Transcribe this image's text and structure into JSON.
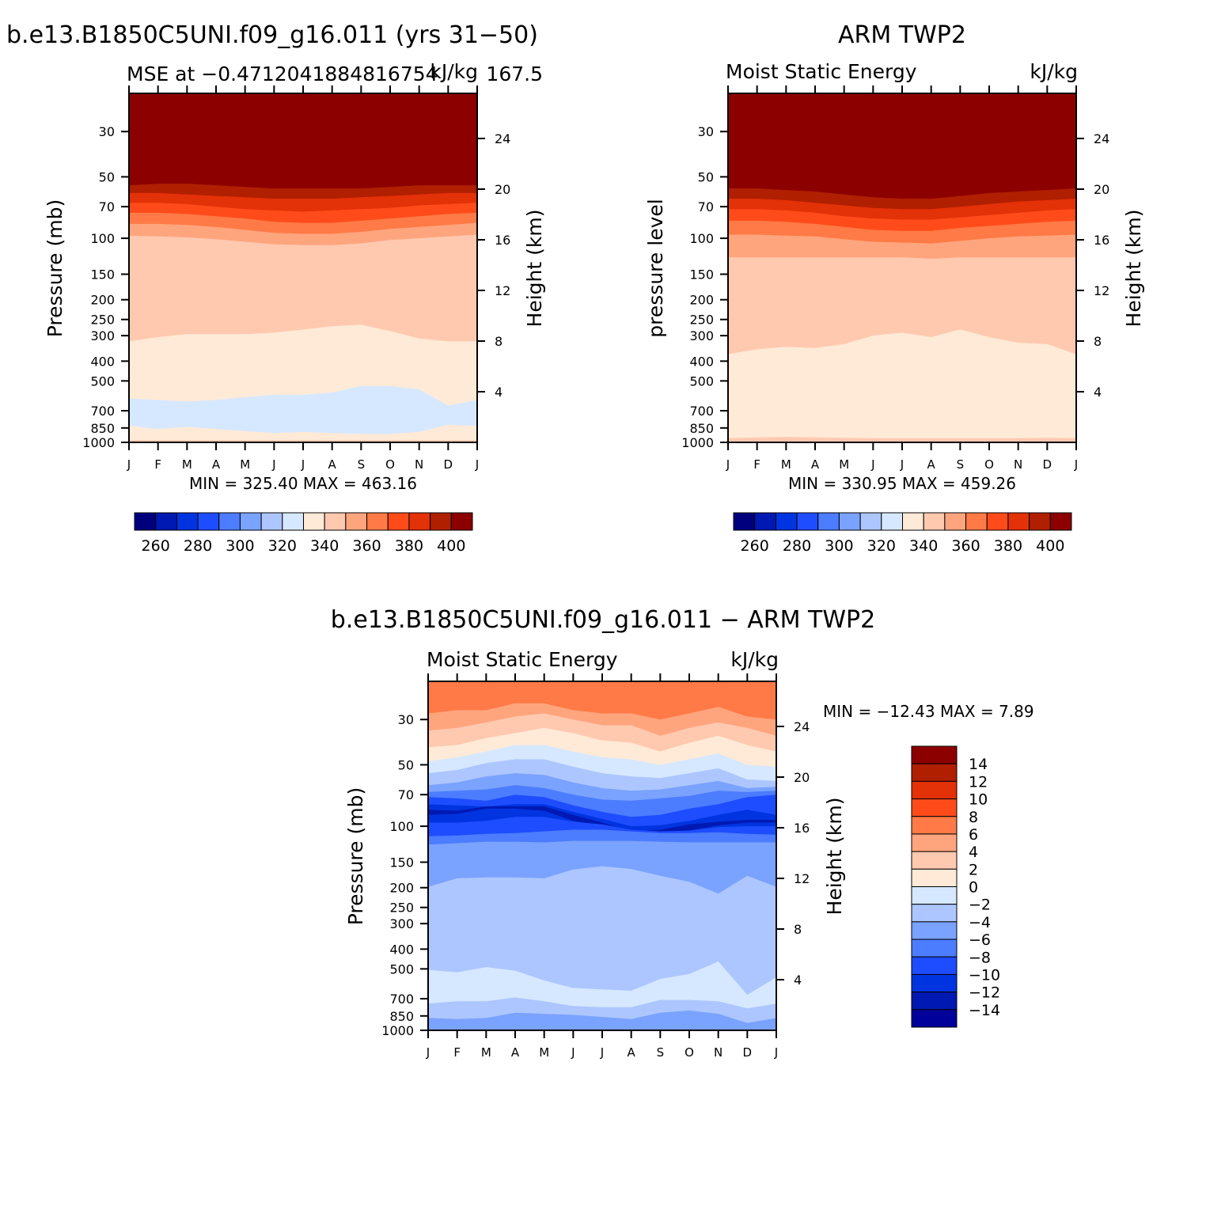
{
  "colors": {
    "abs_palette": [
      "#00007f",
      "#0019b3",
      "#0034e0",
      "#1e4dff",
      "#4c7cff",
      "#7aa2ff",
      "#adc6ff",
      "#d6e8ff",
      "#ffead7",
      "#ffc9b0",
      "#ffa57e",
      "#ff7a46",
      "#ff4b1a",
      "#e33108",
      "#b01f00",
      "#8c0000"
    ],
    "diff_palette": [
      "#00009a",
      "#0019b3",
      "#0034e0",
      "#1e4dff",
      "#4c7cff",
      "#7aa2ff",
      "#adc6ff",
      "#d6e8ff",
      "#ffead7",
      "#ffc9b0",
      "#ffa57e",
      "#ff7a46",
      "#ff4b1a",
      "#e33108",
      "#b01f00",
      "#8c0000"
    ]
  },
  "chart_data": [
    {
      "id": "model",
      "type": "heatmap",
      "title": "b.e13.B1850C5UNI.f09_g16.011 (yrs 31-50)",
      "left_label": "MSE at -0.4712041884816754",
      "center_label": "167.5",
      "right_label": "kJ/kg",
      "ylabel": "Pressure (mb)",
      "y2label": "Height (km)",
      "months": [
        "J",
        "F",
        "M",
        "A",
        "M",
        "J",
        "J",
        "A",
        "S",
        "O",
        "N",
        "D",
        "J"
      ],
      "pressure_ticks": [
        "30",
        "50",
        "70",
        "100",
        "150",
        "200",
        "250",
        "300",
        "400",
        "500",
        "700",
        "850",
        "1000"
      ],
      "height_ticks": [
        "24",
        "20",
        "16",
        "12",
        "8",
        "4"
      ],
      "minmax": "MIN = 325.40 MAX = 463.16",
      "colorbar_labels": [
        "260",
        "280",
        "300",
        "320",
        "340",
        "360",
        "380",
        "400"
      ],
      "levels": [
        250,
        260,
        270,
        280,
        290,
        300,
        310,
        320,
        330,
        340,
        350,
        360,
        370,
        380,
        390,
        400
      ],
      "bands": [
        {
          "level": 390,
          "boundary_mb": [
            55,
            54,
            54,
            55,
            56,
            57,
            57,
            57,
            57,
            56,
            55,
            55,
            55
          ]
        },
        {
          "level": 380,
          "boundary_mb": [
            60,
            60,
            61,
            62,
            63,
            64,
            64,
            64,
            63,
            62,
            61,
            60,
            60
          ]
        },
        {
          "level": 370,
          "boundary_mb": [
            67,
            67,
            68,
            70,
            72,
            73,
            74,
            73,
            72,
            71,
            69,
            68,
            67
          ]
        },
        {
          "level": 360,
          "boundary_mb": [
            75,
            75,
            76,
            78,
            80,
            83,
            84,
            84,
            82,
            80,
            78,
            76,
            75
          ]
        },
        {
          "level": 350,
          "boundary_mb": [
            85,
            85,
            86,
            88,
            91,
            94,
            95,
            95,
            93,
            90,
            88,
            86,
            84
          ]
        },
        {
          "level": 340,
          "boundary_mb": [
            97,
            98,
            99,
            101,
            104,
            107,
            108,
            108,
            106,
            102,
            100,
            98,
            96
          ]
        },
        {
          "level": 330,
          "boundary_mb": [
            320,
            305,
            295,
            295,
            295,
            290,
            280,
            270,
            265,
            285,
            310,
            320,
            320
          ]
        },
        {
          "level": 320,
          "boundary_mb": [
            610,
            620,
            630,
            620,
            600,
            585,
            585,
            570,
            530,
            530,
            550,
            660,
            620
          ]
        },
        {
          "level": 330,
          "boundary_mb": [
            830,
            860,
            840,
            860,
            880,
            900,
            890,
            900,
            910,
            910,
            890,
            820,
            830
          ]
        },
        {
          "level": 340,
          "boundary_mb": [
            975,
            975,
            975,
            975,
            975,
            975,
            975,
            975,
            975,
            975,
            975,
            975,
            975
          ]
        }
      ]
    },
    {
      "id": "obs",
      "type": "heatmap",
      "title": "ARM TWP2",
      "left_label": "Moist Static Energy",
      "right_label": "kJ/kg",
      "ylabel": "pressure level",
      "y2label": "Height (km)",
      "months": [
        "J",
        "F",
        "M",
        "A",
        "M",
        "J",
        "J",
        "A",
        "S",
        "O",
        "N",
        "D",
        "J"
      ],
      "pressure_ticks": [
        "30",
        "50",
        "70",
        "100",
        "150",
        "200",
        "250",
        "300",
        "400",
        "500",
        "700",
        "850",
        "1000"
      ],
      "height_ticks": [
        "24",
        "20",
        "16",
        "12",
        "8",
        "4"
      ],
      "minmax": "MIN = 330.95 MAX = 459.26",
      "colorbar_labels": [
        "260",
        "280",
        "300",
        "320",
        "340",
        "360",
        "380",
        "400"
      ],
      "levels": [
        250,
        260,
        270,
        280,
        290,
        300,
        310,
        320,
        330,
        340,
        350,
        360,
        370,
        380,
        390,
        400
      ],
      "bands": [
        {
          "level": 390,
          "boundary_mb": [
            57,
            57,
            58,
            59,
            61,
            63,
            64,
            64,
            62,
            60,
            59,
            58,
            57
          ]
        },
        {
          "level": 380,
          "boundary_mb": [
            64,
            64,
            65,
            67,
            69,
            71,
            72,
            72,
            70,
            68,
            66,
            65,
            64
          ]
        },
        {
          "level": 370,
          "boundary_mb": [
            72,
            72,
            73,
            75,
            78,
            80,
            81,
            81,
            79,
            77,
            75,
            73,
            72
          ]
        },
        {
          "level": 360,
          "boundary_mb": [
            82,
            82,
            83,
            85,
            88,
            91,
            92,
            92,
            89,
            87,
            85,
            83,
            82
          ]
        },
        {
          "level": 350,
          "boundary_mb": [
            96,
            96,
            97,
            98,
            101,
            104,
            105,
            106,
            103,
            100,
            98,
            97,
            96
          ]
        },
        {
          "level": 340,
          "boundary_mb": [
            124,
            124,
            124,
            124,
            124,
            124,
            124,
            126,
            124,
            124,
            124,
            124,
            124
          ]
        },
        {
          "level": 330,
          "boundary_mb": [
            370,
            350,
            340,
            345,
            330,
            300,
            290,
            305,
            280,
            305,
            325,
            330,
            370
          ]
        },
        {
          "level": 340,
          "boundary_mb": [
            955,
            945,
            940,
            945,
            950,
            955,
            955,
            955,
            955,
            955,
            955,
            950,
            955
          ]
        }
      ]
    },
    {
      "id": "diff",
      "type": "heatmap",
      "title": "b.e13.B1850C5UNI.f09_g16.011 - ARM TWP2",
      "left_label": "Moist Static Energy",
      "right_label": "kJ/kg",
      "ylabel": "Pressure (mb)",
      "y2label": "Height (km)",
      "months": [
        "J",
        "F",
        "M",
        "A",
        "M",
        "J",
        "J",
        "A",
        "S",
        "O",
        "N",
        "D",
        "J"
      ],
      "pressure_ticks": [
        "30",
        "50",
        "70",
        "100",
        "150",
        "200",
        "250",
        "300",
        "400",
        "500",
        "700",
        "850",
        "1000"
      ],
      "height_ticks": [
        "24",
        "20",
        "16",
        "12",
        "8",
        "4"
      ],
      "minmax": "MIN = -12.43 MAX =    7.89",
      "colorbar_labels": [
        "14",
        "12",
        "10",
        "8",
        "6",
        "4",
        "2",
        "0",
        "-2",
        "-4",
        "-6",
        "-8",
        "-10",
        "-12",
        "-14"
      ],
      "levels": [
        -16,
        -14,
        -12,
        -10,
        -8,
        -6,
        -4,
        -2,
        0,
        2,
        4,
        6,
        8,
        10,
        12,
        14
      ],
      "bands": [
        {
          "level": 4,
          "boundary_mb": [
            28,
            27,
            27,
            25,
            25,
            27,
            28,
            28,
            30,
            28,
            26,
            29,
            30
          ]
        },
        {
          "level": 2,
          "boundary_mb": [
            34,
            33,
            31,
            29,
            28,
            30,
            32,
            32,
            36,
            33,
            31,
            33,
            36
          ]
        },
        {
          "level": 0,
          "boundary_mb": [
            41,
            40,
            37,
            35,
            33,
            35,
            38,
            39,
            43,
            39,
            36,
            40,
            43
          ]
        },
        {
          "level": -2,
          "boundary_mb": [
            48,
            46,
            43,
            40,
            40,
            43,
            46,
            47,
            50,
            47,
            44,
            50,
            51
          ]
        },
        {
          "level": -4,
          "boundary_mb": [
            55,
            53,
            49,
            47,
            47,
            51,
            55,
            57,
            58,
            55,
            52,
            59,
            60
          ]
        },
        {
          "level": -6,
          "boundary_mb": [
            63,
            61,
            57,
            55,
            56,
            61,
            65,
            67,
            66,
            63,
            60,
            65,
            64
          ]
        },
        {
          "level": -8,
          "boundary_mb": [
            68,
            67,
            66,
            63,
            65,
            70,
            74,
            75,
            73,
            71,
            67,
            68,
            67
          ]
        },
        {
          "level": -10,
          "boundary_mb": [
            72,
            73,
            75,
            70,
            72,
            79,
            85,
            90,
            88,
            82,
            78,
            72,
            70
          ]
        },
        {
          "level": -12,
          "boundary_mb": [
            78,
            79,
            80,
            78,
            78,
            85,
            92,
            100,
            99,
            94,
            88,
            83,
            88
          ]
        },
        {
          "level": -14,
          "boundary_mb": [
            83,
            84,
            80,
            80,
            80,
            88,
            96,
            106,
            104,
            98,
            95,
            93,
            93
          ]
        },
        {
          "level": -12,
          "boundary_mb": [
            88,
            87,
            82,
            82,
            84,
            94,
            100,
            106,
            106,
            105,
            99,
            96,
            96
          ]
        },
        {
          "level": -10,
          "boundary_mb": [
            96,
            96,
            94,
            90,
            90,
            95,
            98,
            104,
            106,
            105,
            101,
            100,
            100
          ]
        },
        {
          "level": -8,
          "boundary_mb": [
            112,
            111,
            109,
            108,
            106,
            104,
            104,
            106,
            108,
            108,
            107,
            109,
            110
          ]
        },
        {
          "level": -6,
          "boundary_mb": [
            123,
            121,
            119,
            119,
            120,
            118,
            118,
            118,
            119,
            120,
            120,
            120,
            120
          ]
        },
        {
          "level": -4,
          "boundary_mb": [
            198,
            180,
            178,
            178,
            180,
            163,
            157,
            162,
            175,
            187,
            214,
            175,
            198
          ]
        },
        {
          "level": -2,
          "boundary_mb": [
            505,
            520,
            490,
            510,
            570,
            620,
            630,
            640,
            560,
            530,
            460,
            670,
            550
          ]
        },
        {
          "level": -4,
          "boundary_mb": [
            740,
            720,
            720,
            690,
            720,
            760,
            770,
            770,
            710,
            710,
            720,
            780,
            740
          ]
        },
        {
          "level": -6,
          "boundary_mb": [
            870,
            880,
            870,
            820,
            830,
            840,
            860,
            880,
            820,
            800,
            830,
            920,
            870
          ]
        }
      ]
    }
  ]
}
